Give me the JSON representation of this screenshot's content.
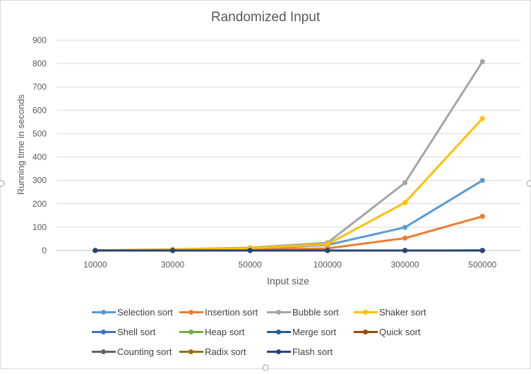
{
  "chart_data": {
    "type": "line",
    "title": "Randomized Input",
    "xlabel": "Input size",
    "ylabel": "Running time in seconds",
    "categories": [
      "10000",
      "30000",
      "50000",
      "100000",
      "300000",
      "500000"
    ],
    "ylim": [
      0,
      900
    ],
    "yticks": [
      "0",
      "100",
      "200",
      "300",
      "400",
      "500",
      "600",
      "700",
      "800",
      "900"
    ],
    "grid": true,
    "legend_position": "bottom",
    "series": [
      {
        "name": "Selection sort",
        "color": "#5B9BD5",
        "values": [
          0.3,
          2.5,
          7,
          24,
          99,
          300
        ]
      },
      {
        "name": "Insertion sort",
        "color": "#ED7D31",
        "values": [
          0.1,
          1,
          3,
          9,
          53,
          146
        ]
      },
      {
        "name": "Bubble sort",
        "color": "#A5A5A5",
        "values": [
          0.5,
          5,
          12,
          33,
          290,
          808
        ]
      },
      {
        "name": "Shaker sort",
        "color": "#FFC000",
        "values": [
          0.4,
          3.5,
          10,
          27,
          205,
          565
        ]
      },
      {
        "name": "Shell sort",
        "color": "#4472C4",
        "values": [
          0,
          0,
          0,
          0,
          0.1,
          0.2
        ]
      },
      {
        "name": "Heap sort",
        "color": "#70AD47",
        "values": [
          0,
          0,
          0,
          0,
          0.1,
          0.2
        ]
      },
      {
        "name": "Merge sort",
        "color": "#255E91",
        "values": [
          0,
          0,
          0,
          0,
          0.1,
          0.2
        ]
      },
      {
        "name": "Quick sort",
        "color": "#9E480E",
        "values": [
          0,
          0,
          0,
          0,
          0.1,
          0.1
        ]
      },
      {
        "name": "Counting sort",
        "color": "#636363",
        "values": [
          0,
          0,
          0,
          0,
          0,
          0.01
        ]
      },
      {
        "name": "Radix sort",
        "color": "#997300",
        "values": [
          0,
          0,
          0,
          0,
          0.1,
          0.1
        ]
      },
      {
        "name": "Flash sort",
        "color": "#264478",
        "values": [
          0,
          0,
          0,
          0,
          0,
          0.03
        ]
      }
    ]
  }
}
